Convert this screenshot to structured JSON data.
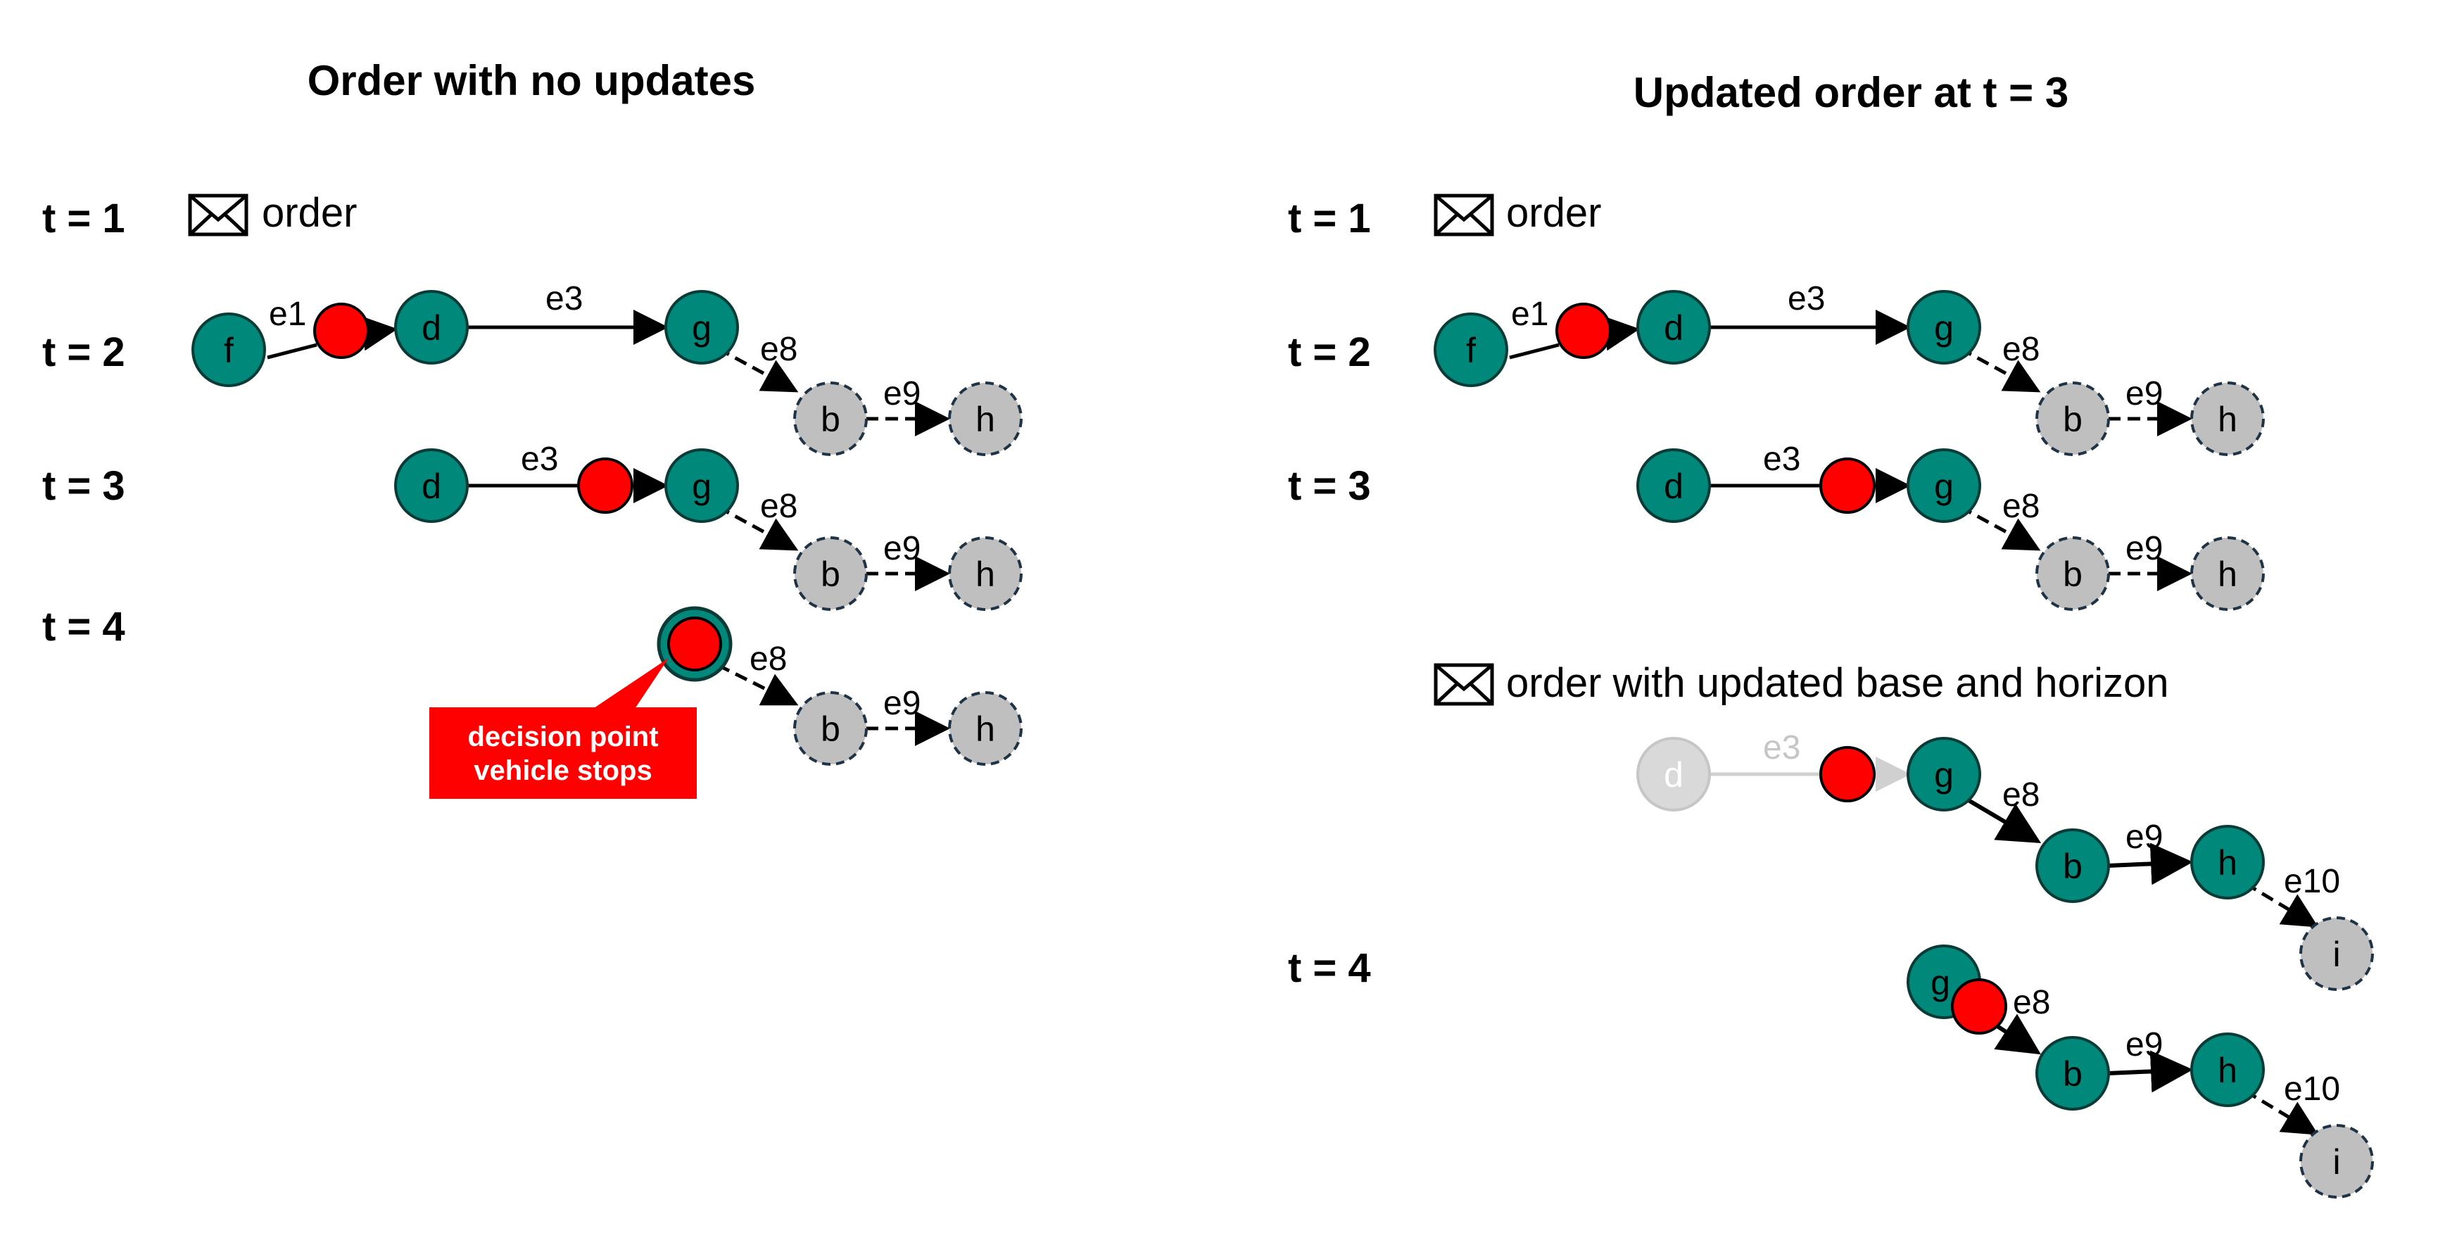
{
  "colors": {
    "released_node": "#00897b",
    "horizon_node": "#bfbfbf",
    "decision_point": "#ff0000",
    "faded": "#d9d9d9",
    "callout": "#ff0000"
  },
  "left": {
    "title": "Order with no updates",
    "rows": [
      {
        "time": "t = 1",
        "message": "order"
      },
      {
        "time": "t = 2"
      },
      {
        "time": "t = 3"
      },
      {
        "time": "t = 4"
      }
    ],
    "callout": {
      "line1": "decision point",
      "line2": "vehicle stops"
    }
  },
  "right": {
    "title": "Updated order at t = 3",
    "rows": [
      {
        "time": "t = 1",
        "message": "order"
      },
      {
        "time": "t = 2"
      },
      {
        "time": "t = 3"
      },
      {
        "time": "t = 4"
      }
    ],
    "update_message": "order with updated base and horizon"
  },
  "nodes": {
    "f": "f",
    "d": "d",
    "g": "g",
    "b": "b",
    "h": "h",
    "i": "i"
  },
  "edges": {
    "e1": "e1",
    "e3": "e3",
    "e8": "e8",
    "e9": "e9",
    "e10": "e10"
  },
  "icon": "envelope-icon"
}
